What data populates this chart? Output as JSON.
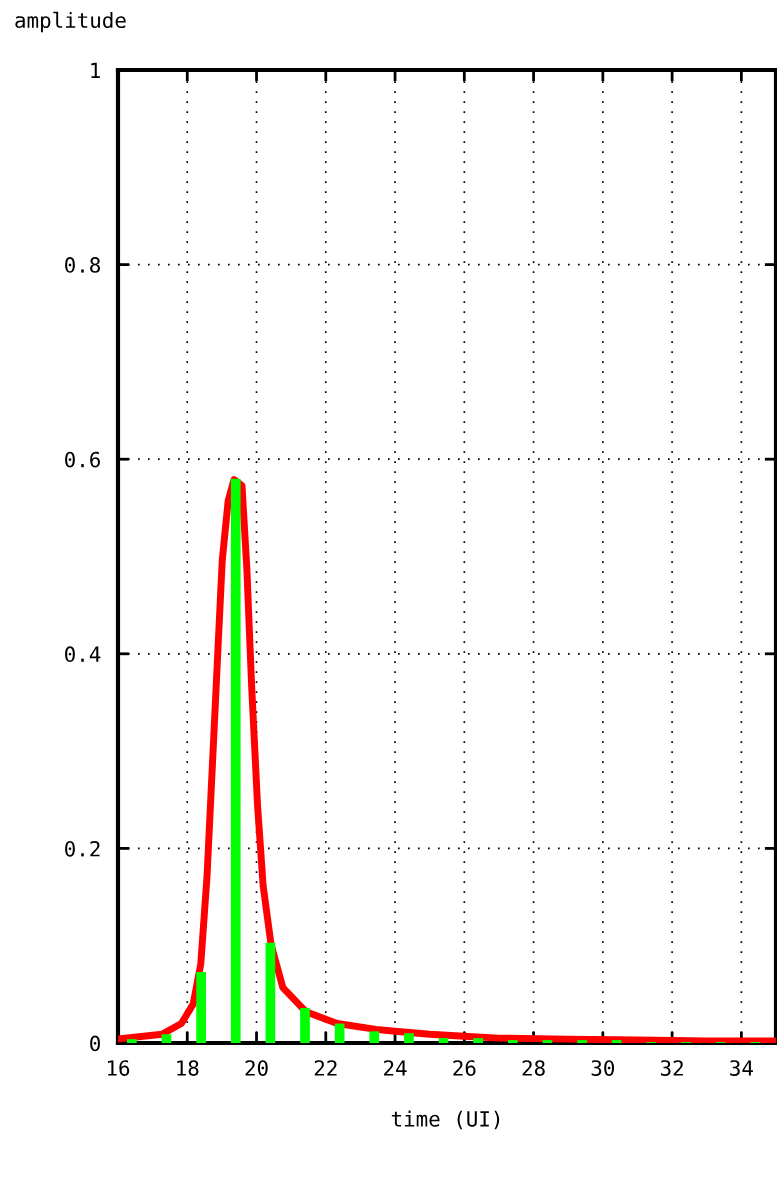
{
  "chart_data": {
    "type": "line",
    "xlabel": "time (UI)",
    "ylabel": "amplitude",
    "xlim": [
      16,
      35
    ],
    "xticks": [
      16,
      18,
      20,
      22,
      24,
      26,
      28,
      30,
      32,
      34
    ],
    "ylim": [
      0,
      1
    ],
    "yticks": [
      0,
      0.2,
      0.4,
      0.6,
      0.8,
      1
    ],
    "grid": true,
    "line_style": "solid",
    "marker": "none",
    "series": [
      {
        "color": "#ff0000",
        "x": [
          16.0,
          17.27,
          17.83,
          18.17,
          18.39,
          18.57,
          18.68,
          18.79,
          18.9,
          19.01,
          19.18,
          19.35,
          19.58,
          19.72,
          19.86,
          20.03,
          20.19,
          20.42,
          20.76,
          21.43,
          22.33,
          23.45,
          24.0,
          25.0,
          26.0,
          27.0,
          29.0,
          31.0,
          33.0,
          35.0
        ],
        "values": [
          0.004,
          0.009,
          0.02,
          0.04,
          0.081,
          0.171,
          0.252,
          0.333,
          0.415,
          0.496,
          0.557,
          0.579,
          0.573,
          0.488,
          0.366,
          0.244,
          0.162,
          0.101,
          0.057,
          0.032,
          0.02,
          0.014,
          0.012,
          0.009,
          0.007,
          0.005,
          0.004,
          0.003,
          0.002,
          0.002
        ]
      },
      {
        "type": "bar",
        "color": "#00ff00",
        "x": [
          16.4,
          17.4,
          18.4,
          19.4,
          20.4,
          21.4,
          22.4,
          23.4,
          24.4,
          25.4,
          26.4,
          27.4,
          28.4,
          29.4,
          30.4,
          31.4,
          32.4,
          33.4,
          34.4
        ],
        "values": [
          0.004,
          0.009,
          0.073,
          0.58,
          0.103,
          0.036,
          0.02,
          0.012,
          0.01,
          0.005,
          0.005,
          0.003,
          0.003,
          0.003,
          0.003,
          0.001,
          0.001,
          0.001,
          0.001
        ]
      }
    ]
  }
}
